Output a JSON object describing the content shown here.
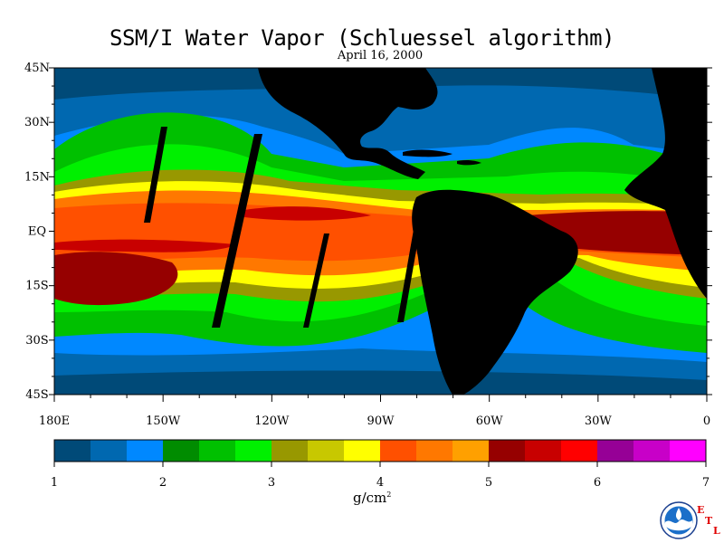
{
  "title": "SSM/I Water Vapor (Schluessel algorithm)",
  "subtitle": "April 16, 2000",
  "lat_labels": [
    "45N",
    "30N",
    "15N",
    "EQ",
    "15S",
    "30S",
    "45S"
  ],
  "lon_labels": [
    "180E",
    "150W",
    "120W",
    "90W",
    "60W",
    "30W",
    "0"
  ],
  "colorbar": {
    "min": 1,
    "max": 7,
    "tick_labels": [
      "1",
      "2",
      "3",
      "4",
      "5",
      "6",
      "7"
    ],
    "colors": [
      "#004a78",
      "#0068b0",
      "#0088ff",
      "#008c00",
      "#00c000",
      "#00f000",
      "#989800",
      "#c8c800",
      "#ffff00",
      "#ff5000",
      "#ff7800",
      "#ffa000",
      "#960000",
      "#c80000",
      "#ff0000",
      "#960096",
      "#c800c8",
      "#ff00ff"
    ]
  },
  "units": {
    "base": "g/cm",
    "exponent": "2"
  },
  "logo": {
    "name": "NOAA",
    "etl": [
      "E",
      "T",
      "L"
    ]
  },
  "land_color": "#000000"
}
